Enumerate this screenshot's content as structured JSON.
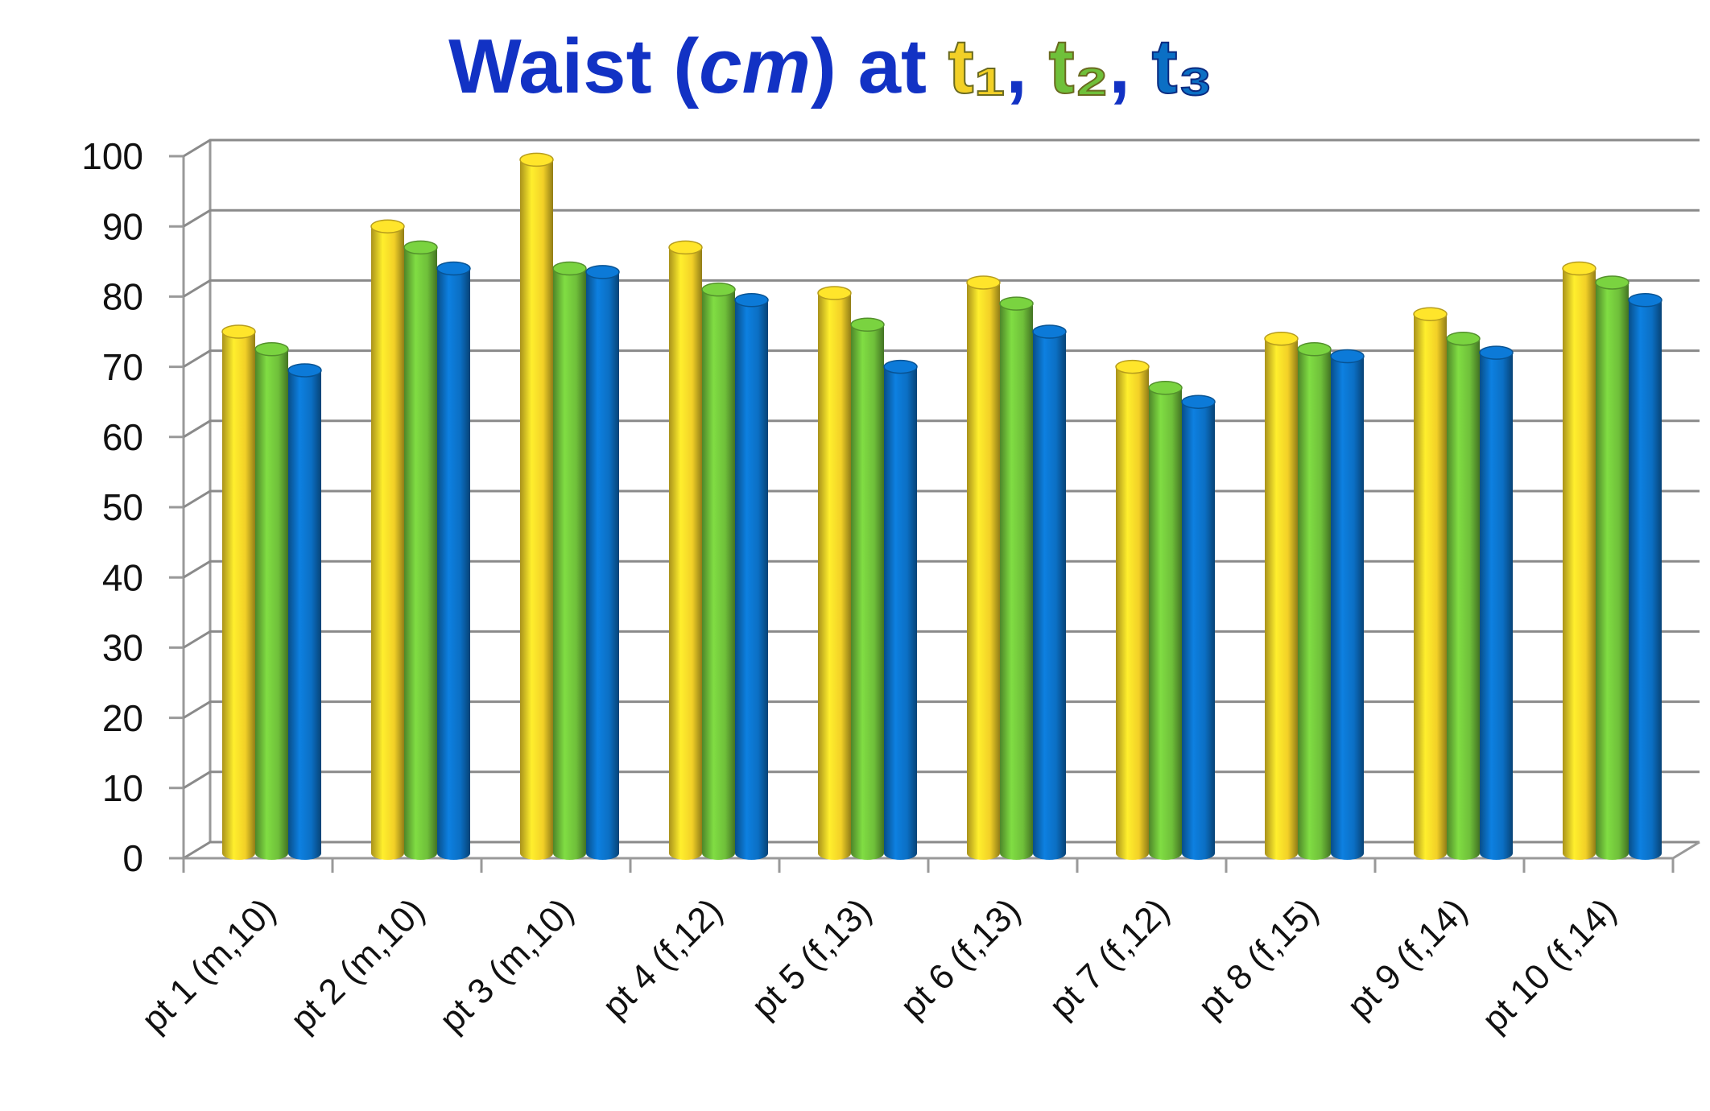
{
  "chart_data": {
    "type": "bar3d",
    "title": [
      "Waist (",
      "cm",
      ") at ",
      "t₁",
      ", ",
      "t₂",
      ", ",
      "t₃"
    ],
    "categories": [
      "pt 1 (m,10)",
      "pt 2 (m,10)",
      "pt 3 (m,10)",
      "pt 4 (f,12)",
      "pt 5 (f,13)",
      "pt 6 (f,13)",
      "pt 7 (f,12)",
      "pt 8 (f,15)",
      "pt 9 (f,14)",
      "pt 10 (f,14)"
    ],
    "series": [
      {
        "name": "t₁",
        "color": "#f2d027",
        "values": [
          75,
          90,
          99.5,
          87,
          80.5,
          82,
          70,
          74,
          77.5,
          84
        ]
      },
      {
        "name": "t₂",
        "color": "#6fc03a",
        "values": [
          72.5,
          87,
          84,
          81,
          76,
          79,
          67,
          72.5,
          74,
          82
        ]
      },
      {
        "name": "t₃",
        "color": "#0b6fc4",
        "values": [
          69.5,
          84,
          83.5,
          79.5,
          70,
          75,
          65,
          71.5,
          72,
          79.5
        ]
      }
    ],
    "ylim": [
      0,
      100
    ],
    "yticks": [
      0,
      10,
      20,
      30,
      40,
      50,
      60,
      70,
      80,
      90,
      100
    ],
    "grid": true
  }
}
